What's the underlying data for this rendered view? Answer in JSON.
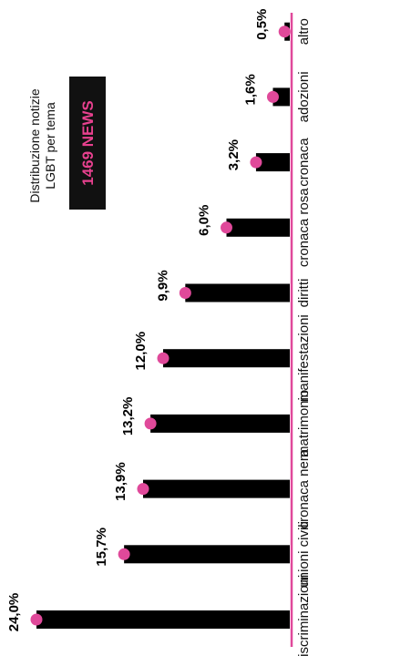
{
  "chart_data": {
    "type": "bar",
    "orientation": "horizontal",
    "title": "Distribuzione notizie LGBT per tema",
    "title_lines": [
      "Distribuzione notizie",
      "LGBT per tema"
    ],
    "badge": "1469 NEWS",
    "categories": [
      "discriminazioni",
      "unioni civili",
      "cronaca nera",
      "matrimonio",
      "manifestazioni",
      "diritti",
      "cronaca rosa",
      "cronaca",
      "adozioni",
      "altro"
    ],
    "values": [
      24.0,
      15.7,
      13.9,
      13.2,
      12.0,
      9.9,
      6.0,
      3.2,
      1.6,
      0.5
    ],
    "value_labels": [
      "24,0%",
      "15,7%",
      "13,9%",
      "13,2%",
      "12,0%",
      "9,9%",
      "6,0%",
      "3,2%",
      "1,6%",
      "0,5%"
    ],
    "xlim": [
      0,
      24
    ],
    "grid": false,
    "rotation": "image rotated 180 degrees",
    "colors": {
      "bar": "#000000",
      "dot": "#e0499a",
      "axis": "#e0499a",
      "badge_bg": "#111111",
      "badge_text": "#e8418f"
    }
  }
}
